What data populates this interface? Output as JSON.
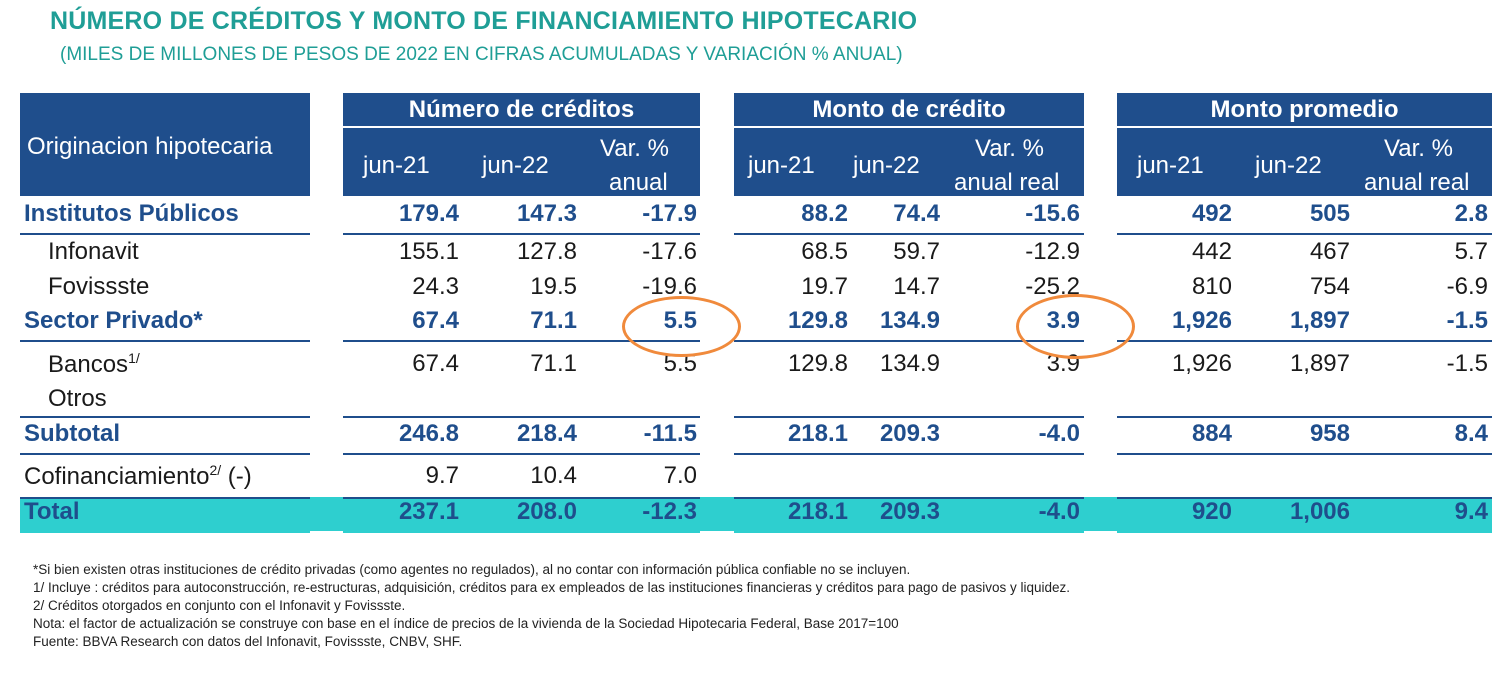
{
  "title": "NÚMERO DE CRÉDITOS Y MONTO DE FINANCIAMIENTO HIPOTECARIO",
  "subtitle": "(MILES DE MILLONES DE PESOS DE 2022 EN CIFRAS ACUMULADAS Y  VARIACIÓN % ANUAL)",
  "chart_data": {
    "type": "table",
    "row_header": "Originacion hipotecaria",
    "groups": [
      "Número de créditos",
      "Monto de crédito",
      "Monto promedio"
    ],
    "columns": {
      "g1": [
        "jun-21",
        "jun-22",
        "Var. %",
        "anual"
      ],
      "g2": [
        "jun-21",
        "jun-22",
        "Var. %",
        "anual real"
      ],
      "g3": [
        "jun-21",
        "jun-22",
        "Var. %",
        "anual real"
      ]
    },
    "rows": [
      {
        "label": "Institutos Públicos",
        "values": [
          "179.4",
          "147.3",
          "-17.9",
          "88.2",
          "74.4",
          "-15.6",
          "492",
          "505",
          "2.8"
        ]
      },
      {
        "label": "Infonavit",
        "values": [
          "155.1",
          "127.8",
          "-17.6",
          "68.5",
          "59.7",
          "-12.9",
          "442",
          "467",
          "5.7"
        ]
      },
      {
        "label": "Fovissste",
        "values": [
          "24.3",
          "19.5",
          "-19.6",
          "19.7",
          "14.7",
          "-25.2",
          "810",
          "754",
          "-6.9"
        ]
      },
      {
        "label": "Sector Privado*",
        "values": [
          "67.4",
          "71.1",
          "5.5",
          "129.8",
          "134.9",
          "3.9",
          "1,926",
          "1,897",
          "-1.5"
        ]
      },
      {
        "label": "Bancos",
        "sup": "1/",
        "values": [
          "67.4",
          "71.1",
          "5.5",
          "129.8",
          "134.9",
          "3.9",
          "1,926",
          "1,897",
          "-1.5"
        ]
      },
      {
        "label": "Otros",
        "values": [
          "",
          "",
          "",
          "",
          "",
          "",
          "",
          "",
          ""
        ]
      },
      {
        "label": "Subtotal",
        "values": [
          "246.8",
          "218.4",
          "-11.5",
          "218.1",
          "209.3",
          "-4.0",
          "884",
          "958",
          "8.4"
        ]
      },
      {
        "label": "Cofinanciamiento",
        "sup": "2/",
        "suffix": " (-)",
        "values": [
          "9.7",
          "10.4",
          "7.0",
          "",
          "",
          "",
          "",
          "",
          ""
        ]
      },
      {
        "label": "Total",
        "values": [
          "237.1",
          "208.0",
          "-12.3",
          "218.1",
          "209.3",
          "-4.0",
          "920",
          "1,006",
          "9.4"
        ]
      }
    ]
  },
  "footnotes": [
    "*Si bien existen otras instituciones de crédito privadas (como agentes no regulados), al no contar con información pública confiable no se incluyen.",
    "1/ Incluye : créditos para autoconstrucción, re-estructuras, adquisición, créditos para ex empleados de las instituciones financieras y créditos para pago de pasivos y liquidez.",
    "2/ Créditos otorgados en conjunto con el Infonavit y Fovissste.",
    "Nota: el factor de actualización se construye con base en el índice de precios de la vivienda de la Sociedad Hipotecaria Federal, Base 2017=100",
    "Fuente: BBVA Research con datos del Infonavit, Fovissste, CNBV, SHF."
  ],
  "colors": {
    "header_bg": "#1f4e8c",
    "title": "#1f9e96",
    "total_bg": "#2ecfcf",
    "highlight": "#f08a3c"
  }
}
